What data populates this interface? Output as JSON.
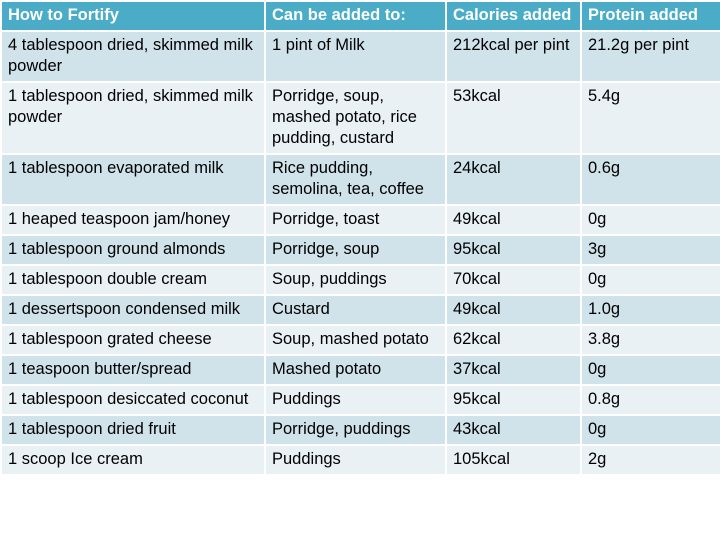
{
  "table": {
    "headers": [
      "How to Fortify",
      "Can be added to:",
      "Calories added",
      "Protein added"
    ],
    "rows": [
      [
        "4 tablespoon dried, skimmed milk powder",
        "1 pint of Milk",
        "212kcal per pint",
        "21.2g per pint"
      ],
      [
        "1 tablespoon dried, skimmed milk powder",
        "Porridge, soup, mashed potato, rice pudding, custard",
        "53kcal",
        "5.4g"
      ],
      [
        "1 tablespoon evaporated milk",
        "Rice pudding, semolina, tea, coffee",
        "24kcal",
        "0.6g"
      ],
      [
        "1 heaped teaspoon jam/honey",
        "Porridge, toast",
        "49kcal",
        "0g"
      ],
      [
        "1 tablespoon ground almonds",
        "Porridge, soup",
        "95kcal",
        "3g"
      ],
      [
        "1 tablespoon double cream",
        "Soup, puddings",
        "70kcal",
        "0g"
      ],
      [
        "1 dessertspoon condensed milk",
        "Custard",
        "49kcal",
        "1.0g"
      ],
      [
        "1 tablespoon grated cheese",
        "Soup, mashed potato",
        "62kcal",
        "3.8g"
      ],
      [
        "1 teaspoon butter/spread",
        "Mashed potato",
        "37kcal",
        "0g"
      ],
      [
        "1 tablespoon desiccated coconut",
        "Puddings",
        "95kcal",
        "0.8g"
      ],
      [
        "1 tablespoon dried fruit",
        "Porridge, puddings",
        "43kcal",
        "0g"
      ],
      [
        "1 scoop Ice cream",
        "Puddings",
        "105kcal",
        "2g"
      ]
    ]
  }
}
